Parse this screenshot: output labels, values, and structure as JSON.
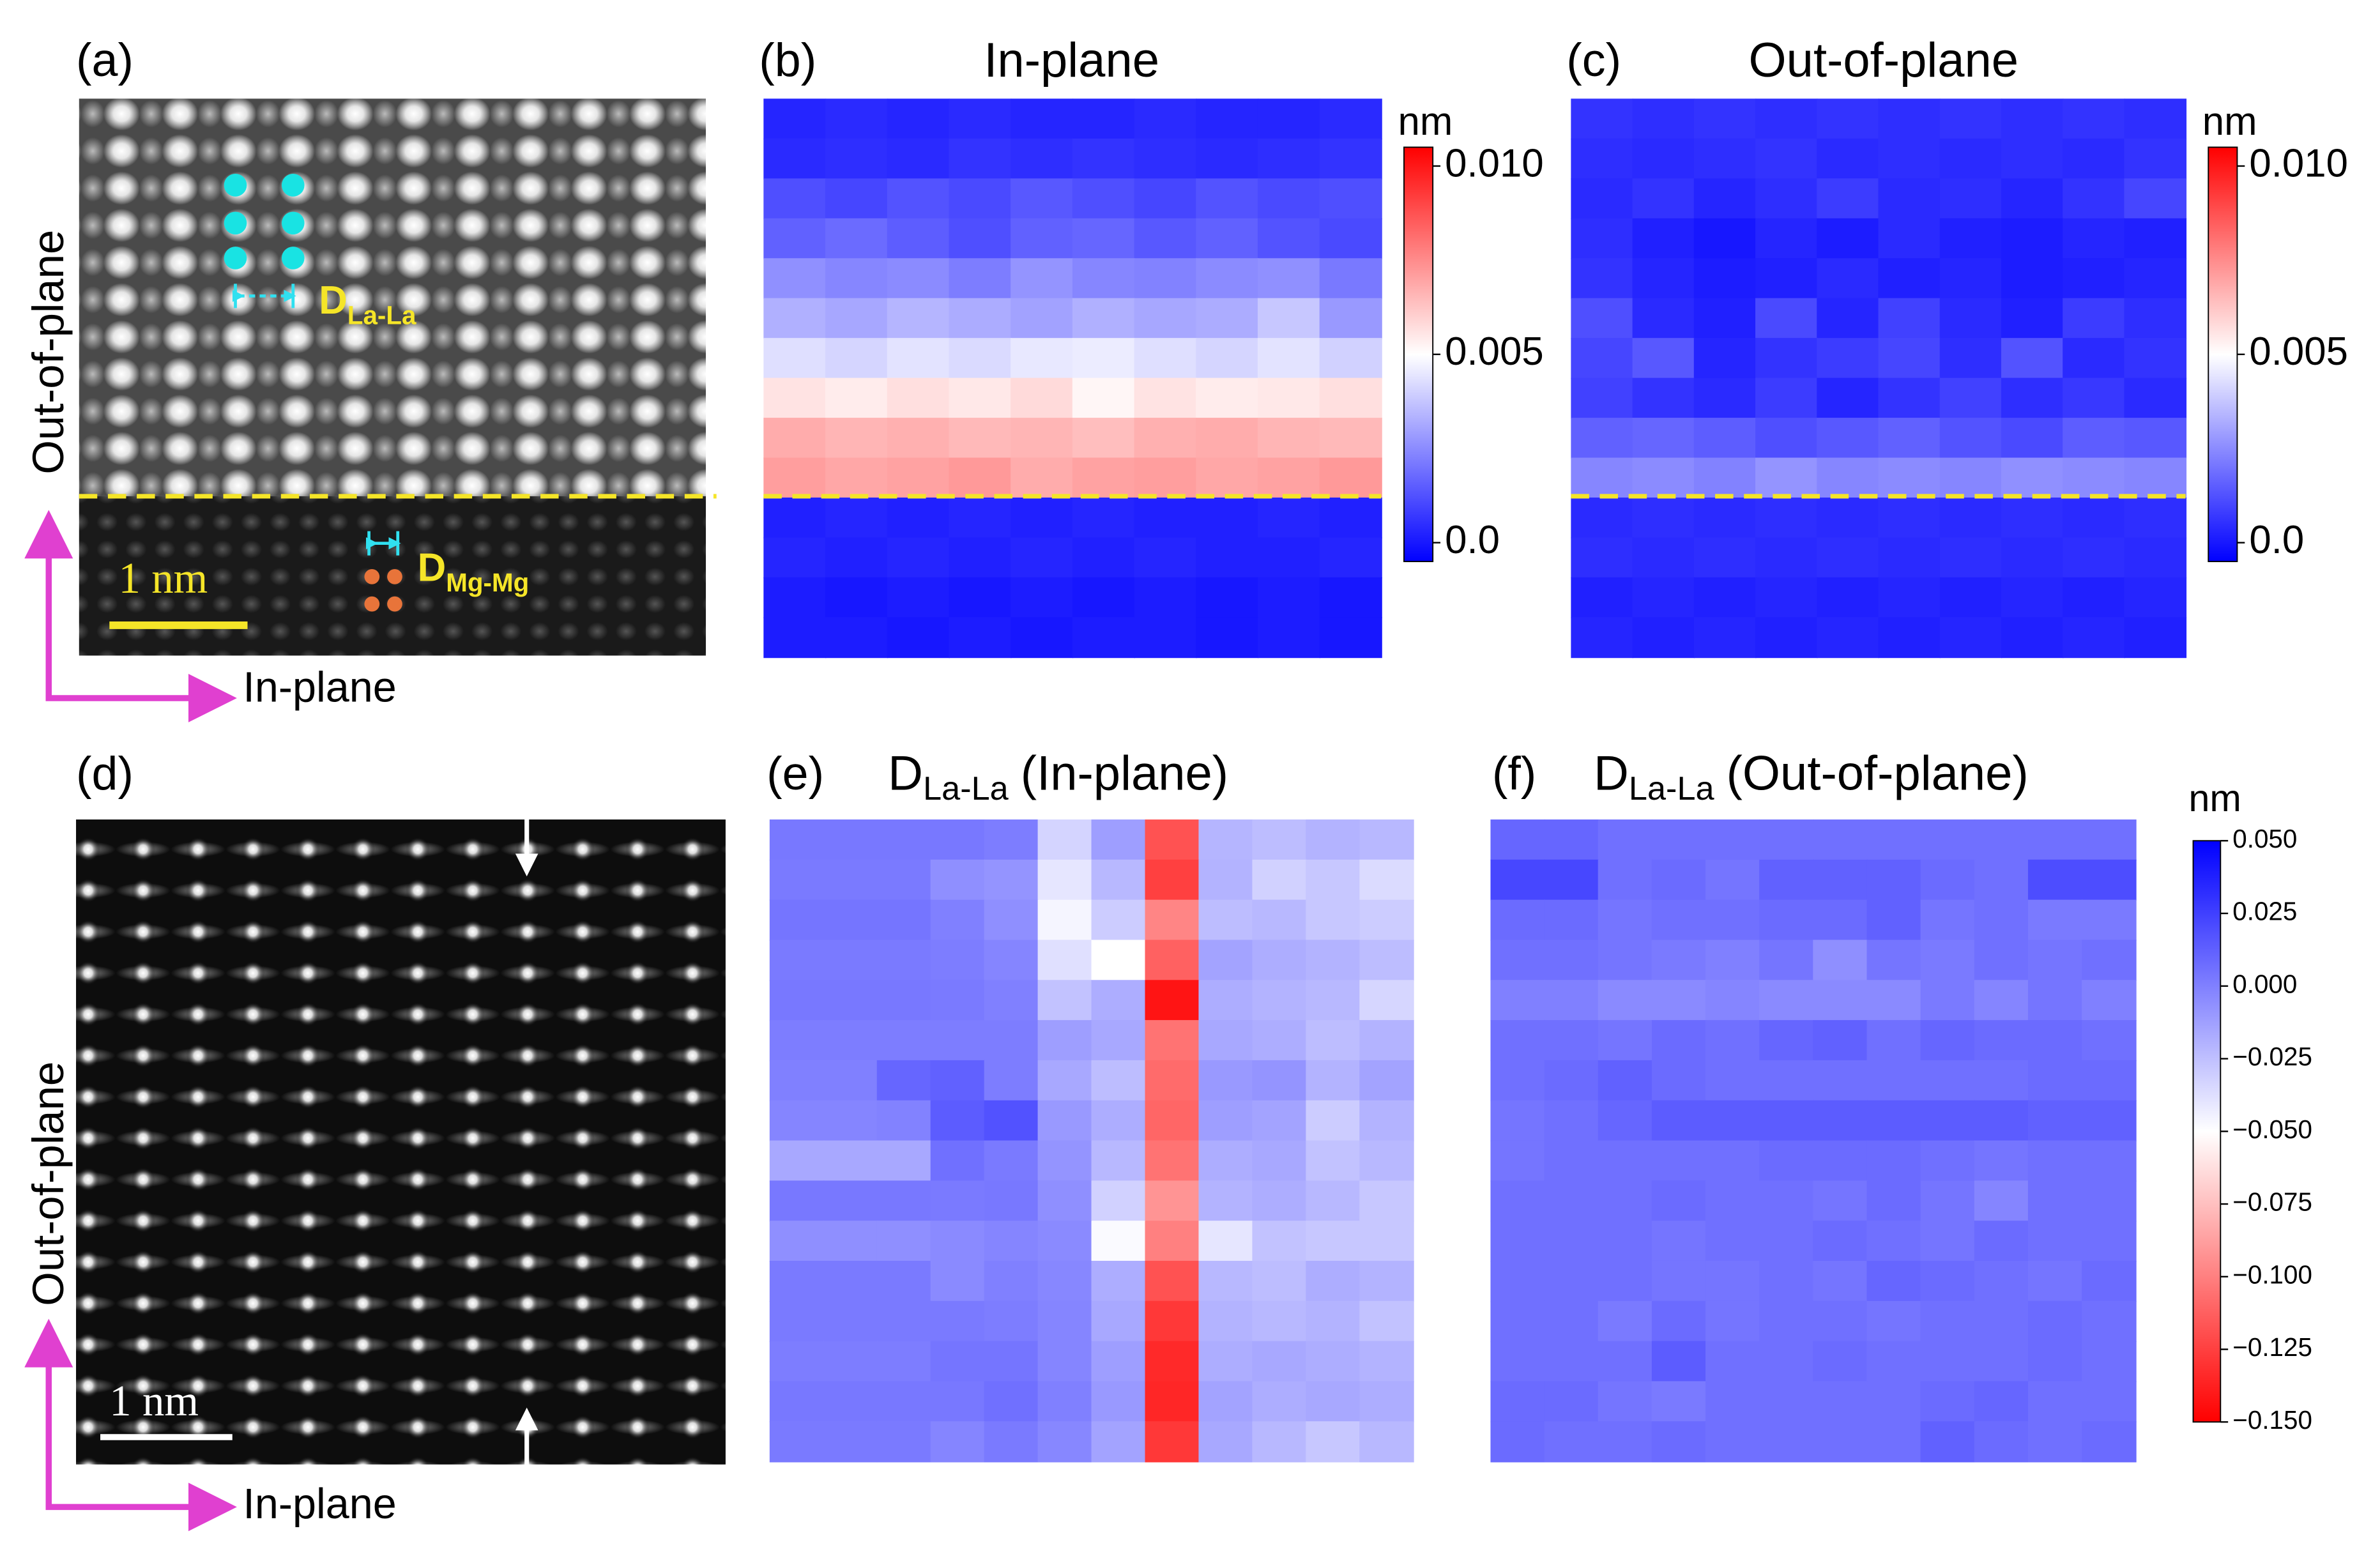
{
  "panel_labels": [
    "(a)",
    "(b)",
    "(c)",
    "(d)",
    "(e)",
    "(f)"
  ],
  "image_a": {
    "y_axis_label": "Out-of-plane",
    "x_axis_label": "In-plane",
    "scale_bar": "1 nm",
    "annotation_la": {
      "main": "D",
      "sub": "La-La"
    },
    "annotation_mg": {
      "main": "D",
      "sub": "Mg-Mg"
    }
  },
  "image_d": {
    "y_axis_label": "Out-of-plane",
    "x_axis_label": "In-plane",
    "scale_bar": "1 nm"
  },
  "shared_colorbar": {
    "label": "nm",
    "colormap": "bwr_r",
    "clim": [
      -0.15,
      0.05
    ],
    "ticks": [
      {
        "value": 0.05,
        "label": "0.050"
      },
      {
        "value": 0.025,
        "label": "0.025"
      },
      {
        "value": 0,
        "label": "0.000"
      },
      {
        "value": -0.025,
        "label": "−0.025"
      },
      {
        "value": -0.05,
        "label": "−0.050"
      },
      {
        "value": -0.075,
        "label": "−0.075"
      },
      {
        "value": -0.1,
        "label": "−0.100"
      },
      {
        "value": -0.125,
        "label": "−0.125"
      },
      {
        "value": -0.15,
        "label": "−0.150"
      }
    ]
  },
  "chart_data": [
    {
      "type": "heatmap",
      "title": "In-plane",
      "colormap": "bwr",
      "clim": [
        -0.0005,
        0.0105
      ],
      "colorbar_label": "nm",
      "colorbar_ticks": [
        {
          "value": 0.01,
          "label": "0.010"
        },
        0.005,
        {
          "value": 0,
          "label": "0.0"
        }
      ],
      "values": [
        [
          0.0003,
          0.0004,
          0.0003,
          0.0004,
          0.0003,
          0.0003,
          0.0004,
          0.0003,
          0.0003,
          0.0004
        ],
        [
          0.0004,
          0.0005,
          0.0004,
          0.0006,
          0.0005,
          0.0006,
          0.0005,
          0.0004,
          0.0005,
          0.0006
        ],
        [
          0.0012,
          0.001,
          0.0013,
          0.0011,
          0.0014,
          0.0012,
          0.001,
          0.0013,
          0.0011,
          0.0012
        ],
        [
          0.0016,
          0.0018,
          0.0015,
          0.0012,
          0.0016,
          0.0017,
          0.0014,
          0.0016,
          0.0013,
          0.0011
        ],
        [
          0.0026,
          0.0024,
          0.0025,
          0.0022,
          0.0027,
          0.0024,
          0.0023,
          0.0025,
          0.0026,
          0.0021
        ],
        [
          0.0033,
          0.0031,
          0.0034,
          0.0032,
          0.003,
          0.0033,
          0.0031,
          0.0032,
          0.0038,
          0.0028
        ],
        [
          0.0043,
          0.0041,
          0.0044,
          0.0042,
          0.0045,
          0.0046,
          0.0043,
          0.0041,
          0.0044,
          0.004
        ],
        [
          0.0056,
          0.0054,
          0.0057,
          0.0055,
          0.0058,
          0.0052,
          0.0056,
          0.0054,
          0.0055,
          0.0057
        ],
        [
          0.0068,
          0.0066,
          0.0067,
          0.0065,
          0.0066,
          0.0064,
          0.0067,
          0.0068,
          0.0066,
          0.0065
        ],
        [
          0.0071,
          0.0069,
          0.007,
          0.0072,
          0.0068,
          0.007,
          0.0071,
          0.0069,
          0.007,
          0.0072
        ],
        [
          0.0002,
          0.0003,
          0.0002,
          0.0003,
          0.0002,
          0.0003,
          0.0002,
          0.0002,
          0.0003,
          0.0002
        ],
        [
          0.0003,
          0.0002,
          0.0003,
          0.0002,
          0.0003,
          0.0002,
          0.0003,
          0.0002,
          0.0002,
          0.0003
        ],
        [
          0.0001,
          0,
          0.0001,
          0,
          0.0001,
          0,
          0.0001,
          0,
          0.0001,
          0
        ],
        [
          0.0001,
          0.0001,
          0,
          0.0001,
          0,
          0.0001,
          0.0001,
          0,
          0.0001,
          0
        ]
      ]
    },
    {
      "type": "heatmap",
      "title": "Out-of-plane",
      "colormap": "bwr",
      "clim": [
        -0.0005,
        0.0105
      ],
      "colorbar_label": "nm",
      "colorbar_ticks": [
        {
          "value": 0.01,
          "label": "0.010"
        },
        0.005,
        {
          "value": 0,
          "label": "0.0"
        }
      ],
      "values": [
        [
          0.0006,
          0.0005,
          0.0006,
          0.0005,
          0.0006,
          0.0005,
          0.0006,
          0.0005,
          0.0006,
          0.0005
        ],
        [
          0.0005,
          0.0004,
          0.0005,
          0.0006,
          0.0004,
          0.0005,
          0.0004,
          0.0005,
          0.0004,
          0.0006
        ],
        [
          0.0004,
          0.0006,
          0.0003,
          0.0005,
          0.0008,
          0.0004,
          0.0005,
          0.0003,
          0.0006,
          0.001
        ],
        [
          0.0005,
          0.0002,
          0,
          0.0003,
          0.0001,
          0.0004,
          0.0002,
          0.0001,
          0.0003,
          0.0002
        ],
        [
          0.0006,
          0.0003,
          0.0001,
          0.0002,
          0.0004,
          0.0002,
          0.0003,
          0.0001,
          0.0002,
          0.0003
        ],
        [
          0.0012,
          0.0004,
          0.0002,
          0.0011,
          0.0003,
          0.0009,
          0.0004,
          0.0002,
          0.0008,
          0.0005
        ],
        [
          0.001,
          0.0014,
          0.0003,
          0.0006,
          0.0008,
          0.001,
          0.0005,
          0.0013,
          0.0004,
          0.0006
        ],
        [
          0.0009,
          0.0006,
          0.0004,
          0.0008,
          0.0003,
          0.0006,
          0.0009,
          0.0005,
          0.0007,
          0.0004
        ],
        [
          0.0016,
          0.0017,
          0.0015,
          0.0012,
          0.0014,
          0.0016,
          0.0013,
          0.0011,
          0.0015,
          0.0014
        ],
        [
          0.0024,
          0.0025,
          0.0023,
          0.0027,
          0.0024,
          0.0025,
          0.0024,
          0.0026,
          0.0025,
          0.0024
        ],
        [
          0.0004,
          0.0005,
          0.0004,
          0.0005,
          0.0004,
          0.0005,
          0.0004,
          0.0005,
          0.0004,
          0.0005
        ],
        [
          0.0005,
          0.0004,
          0.0005,
          0.0004,
          0.0005,
          0.0004,
          0.0005,
          0.0004,
          0.0005,
          0.0004
        ],
        [
          0.0002,
          0.0003,
          0.0002,
          0.0003,
          0.0002,
          0.0003,
          0.0002,
          0.0003,
          0.0002,
          0.0003
        ],
        [
          0.0003,
          0.0002,
          0.0003,
          0.0002,
          0.0003,
          0.0002,
          0.0003,
          0.0002,
          0.0003,
          0.0002
        ]
      ]
    },
    {
      "type": "heatmap",
      "title": {
        "main": "D",
        "sub": "La-La",
        "rest": "(In-plane)"
      },
      "colormap": "bwr_r",
      "clim": [
        -0.15,
        0.05
      ],
      "values": [
        [
          0.003,
          0.003,
          0.003,
          0.003,
          0.001,
          -0.033,
          -0.012,
          -0.118,
          -0.021,
          -0.024,
          -0.02,
          -0.022
        ],
        [
          0.002,
          0.002,
          0.002,
          -0.006,
          -0.008,
          -0.04,
          -0.022,
          -0.125,
          -0.02,
          -0.032,
          -0.028,
          -0.036
        ],
        [
          0.004,
          0.004,
          0.004,
          0,
          -0.006,
          -0.046,
          -0.03,
          -0.098,
          -0.024,
          -0.022,
          -0.028,
          -0.03
        ],
        [
          0.002,
          0.002,
          0.002,
          0.001,
          -0.002,
          -0.038,
          -0.05,
          -0.112,
          -0.014,
          -0.018,
          -0.02,
          -0.024
        ],
        [
          0.003,
          0.003,
          0.003,
          0.002,
          0,
          -0.026,
          -0.018,
          -0.142,
          -0.018,
          -0.02,
          -0.022,
          -0.034
        ],
        [
          0.001,
          0.001,
          0.001,
          0.001,
          0.001,
          -0.012,
          -0.016,
          -0.105,
          -0.016,
          -0.018,
          -0.024,
          -0.02
        ],
        [
          0,
          0,
          0.01,
          0.012,
          0.001,
          -0.016,
          -0.024,
          -0.108,
          -0.01,
          -0.008,
          -0.02,
          -0.014
        ],
        [
          -0.002,
          -0.002,
          -0.001,
          0.014,
          0.018,
          -0.01,
          -0.018,
          -0.11,
          -0.012,
          -0.014,
          -0.03,
          -0.02
        ],
        [
          -0.016,
          -0.016,
          -0.016,
          0.006,
          0.002,
          -0.008,
          -0.022,
          -0.105,
          -0.018,
          -0.016,
          -0.026,
          -0.022
        ],
        [
          0.003,
          0.003,
          0.003,
          0.002,
          0.003,
          -0.006,
          -0.032,
          -0.092,
          -0.02,
          -0.018,
          -0.022,
          -0.028
        ],
        [
          -0.006,
          -0.006,
          -0.006,
          -0.004,
          -0.002,
          -0.004,
          -0.048,
          -0.1,
          -0.04,
          -0.026,
          -0.028,
          -0.028
        ],
        [
          0.002,
          0.002,
          0.002,
          -0.004,
          0,
          -0.003,
          -0.018,
          -0.118,
          -0.022,
          -0.024,
          -0.018,
          -0.02
        ],
        [
          0.002,
          0.002,
          0.002,
          0.002,
          0.001,
          -0.002,
          -0.016,
          -0.128,
          -0.02,
          -0.022,
          -0.02,
          -0.026
        ],
        [
          0.001,
          0.001,
          0.001,
          0.004,
          0.004,
          -0.002,
          -0.012,
          -0.134,
          -0.018,
          -0.016,
          -0.018,
          -0.02
        ],
        [
          0.003,
          0.003,
          0.003,
          0.003,
          0.006,
          0,
          -0.01,
          -0.135,
          -0.014,
          -0.018,
          -0.016,
          -0.018
        ],
        [
          0.002,
          0.002,
          0.002,
          -0.002,
          0.002,
          -0.003,
          -0.014,
          -0.128,
          -0.016,
          -0.022,
          -0.028,
          -0.022
        ]
      ]
    },
    {
      "type": "heatmap",
      "title": {
        "main": "D",
        "sub": "La-La",
        "rest": "(Out-of-plane)"
      },
      "colormap": "bwr_r",
      "clim": [
        -0.15,
        0.05
      ],
      "values": [
        [
          0.01,
          0.01,
          0.006,
          0.006,
          0.006,
          0.006,
          0.006,
          0.006,
          0.006,
          0.006,
          0.006,
          0.006
        ],
        [
          0.022,
          0.022,
          0.006,
          0.008,
          0.004,
          0.012,
          0.012,
          0.012,
          0.008,
          0.006,
          0.02,
          0.02
        ],
        [
          0.008,
          0.008,
          0.004,
          0.006,
          0.006,
          0.008,
          0.008,
          0.012,
          0.004,
          0.006,
          0.002,
          0.002
        ],
        [
          0.006,
          0.006,
          0.004,
          0.002,
          0,
          0.004,
          -0.006,
          0.004,
          0.002,
          0.006,
          0.004,
          0.006
        ],
        [
          0,
          0,
          -0.004,
          -0.004,
          -0.002,
          -0.004,
          -0.004,
          -0.004,
          0.002,
          -0.002,
          0.004,
          0
        ],
        [
          0.006,
          0.006,
          0.004,
          0.008,
          0.006,
          0.01,
          0.012,
          0.006,
          0.01,
          0.008,
          0.008,
          0.006
        ],
        [
          0.006,
          0.008,
          0.012,
          0.008,
          0.006,
          0.006,
          0.006,
          0.006,
          0.006,
          0.006,
          0.008,
          0.008
        ],
        [
          0.004,
          0.006,
          0.01,
          0.014,
          0.014,
          0.014,
          0.014,
          0.014,
          0.014,
          0.014,
          0.012,
          0.012
        ],
        [
          0.004,
          0.006,
          0.006,
          0.006,
          0.006,
          0.008,
          0.008,
          0.008,
          0.006,
          0.004,
          0.006,
          0.006
        ],
        [
          0.006,
          0.006,
          0.006,
          0.008,
          0.006,
          0.006,
          0.004,
          0.008,
          0.004,
          -0.002,
          0.006,
          0.006
        ],
        [
          0.006,
          0.006,
          0.006,
          0.004,
          0.006,
          0.006,
          0.008,
          0.006,
          0.004,
          0.008,
          0.006,
          0.006
        ],
        [
          0.006,
          0.006,
          0.006,
          0.004,
          0.004,
          0.006,
          0.004,
          0.01,
          0.008,
          0.006,
          0.004,
          0.008
        ],
        [
          0.006,
          0.006,
          0.002,
          0.008,
          0.004,
          0.006,
          0.006,
          0.004,
          0.006,
          0.006,
          0.008,
          0.006
        ],
        [
          0.006,
          0.006,
          0.006,
          0.014,
          0.006,
          0.006,
          0.008,
          0.006,
          0.006,
          0.006,
          0.008,
          0.006
        ],
        [
          0.008,
          0.008,
          0.004,
          0.002,
          0.006,
          0.006,
          0.006,
          0.006,
          0.008,
          0.01,
          0.006,
          0.006
        ],
        [
          0.008,
          0.006,
          0.006,
          0.008,
          0.006,
          0.006,
          0.006,
          0.006,
          0.012,
          0.008,
          0.006,
          0.008
        ]
      ]
    }
  ]
}
